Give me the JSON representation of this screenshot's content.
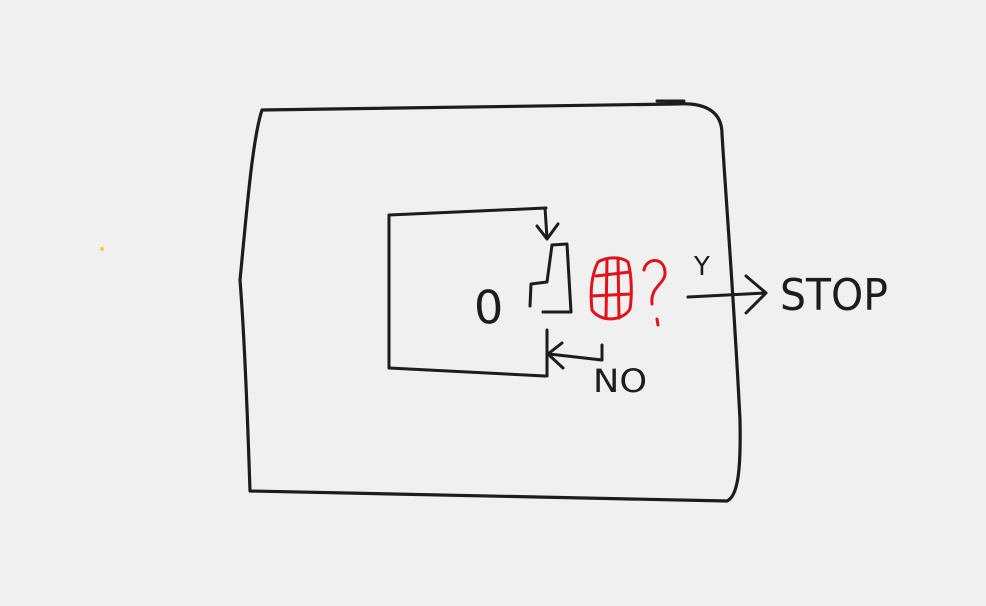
{
  "colors": {
    "background": "#f0f0f0",
    "ink": "#1c1c1c",
    "accent_red": "#e0121b",
    "dot_yellow": "#f2c94c"
  },
  "labels": {
    "zero": "0",
    "yes": "Y",
    "stop": "STOP",
    "no": "NO"
  }
}
